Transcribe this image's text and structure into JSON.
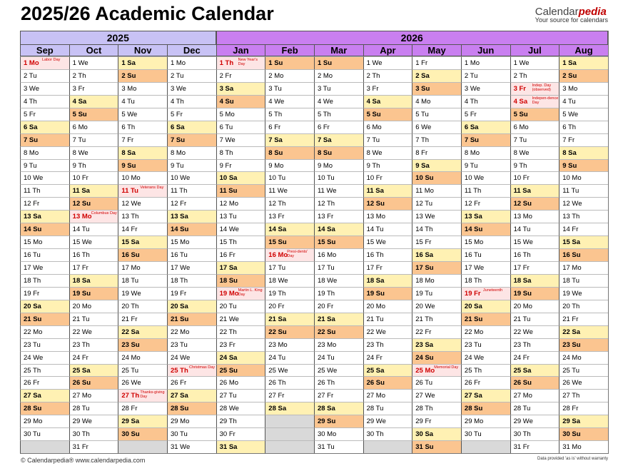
{
  "title": "2025/26 Academic Calendar",
  "brand": {
    "prefix": "Calendar",
    "suffix": "pedia",
    "tagline": "Your source for calendars"
  },
  "years": [
    {
      "label": "2025",
      "span": 4
    },
    {
      "label": "2026",
      "span": 8
    }
  ],
  "months": [
    {
      "name": "Sep",
      "year": "2025",
      "startDow": 1,
      "days": 30
    },
    {
      "name": "Oct",
      "year": "2025",
      "startDow": 3,
      "days": 31
    },
    {
      "name": "Nov",
      "year": "2025",
      "startDow": 6,
      "days": 30
    },
    {
      "name": "Dec",
      "year": "2025",
      "startDow": 1,
      "days": 31
    },
    {
      "name": "Jan",
      "year": "2026",
      "startDow": 4,
      "days": 31
    },
    {
      "name": "Feb",
      "year": "2026",
      "startDow": 0,
      "days": 28
    },
    {
      "name": "Mar",
      "year": "2026",
      "startDow": 0,
      "days": 31
    },
    {
      "name": "Apr",
      "year": "2026",
      "startDow": 3,
      "days": 30
    },
    {
      "name": "May",
      "year": "2026",
      "startDow": 5,
      "days": 31
    },
    {
      "name": "Jun",
      "year": "2026",
      "startDow": 1,
      "days": 30
    },
    {
      "name": "Jul",
      "year": "2026",
      "startDow": 3,
      "days": 31
    },
    {
      "name": "Aug",
      "year": "2026",
      "startDow": 6,
      "days": 31
    }
  ],
  "weekday_abbr": [
    "Su",
    "Mo",
    "Tu",
    "We",
    "Th",
    "Fr",
    "Sa"
  ],
  "holidays": [
    {
      "month": 0,
      "day": 1,
      "label": "Labor Day"
    },
    {
      "month": 1,
      "day": 13,
      "label": "Columbus Day"
    },
    {
      "month": 2,
      "day": 11,
      "label": "Veterans Day"
    },
    {
      "month": 2,
      "day": 27,
      "label": "Thanks-giving Day"
    },
    {
      "month": 3,
      "day": 25,
      "label": "Christmas Day"
    },
    {
      "month": 4,
      "day": 1,
      "label": "New Year's Day"
    },
    {
      "month": 4,
      "day": 19,
      "label": "Martin L. King Day"
    },
    {
      "month": 5,
      "day": 16,
      "label": "Presi-dents' Day"
    },
    {
      "month": 8,
      "day": 25,
      "label": "Memorial Day"
    },
    {
      "month": 9,
      "day": 19,
      "label": "Juneteenth"
    },
    {
      "month": 10,
      "day": 3,
      "label": "Indep. Day (observed)"
    },
    {
      "month": 10,
      "day": 4,
      "label": "Indepen-dence Day"
    }
  ],
  "colors": {
    "saturday": "#fff1b3",
    "sunday": "#fbc590",
    "holiday_text": "#d00000",
    "header_2025": "#c8c2f5",
    "header_2026": "#c97ff0"
  },
  "footer": "© Calendarpedia®   www.calendarpedia.com",
  "disclaimer": "Data provided 'as is' without warranty"
}
